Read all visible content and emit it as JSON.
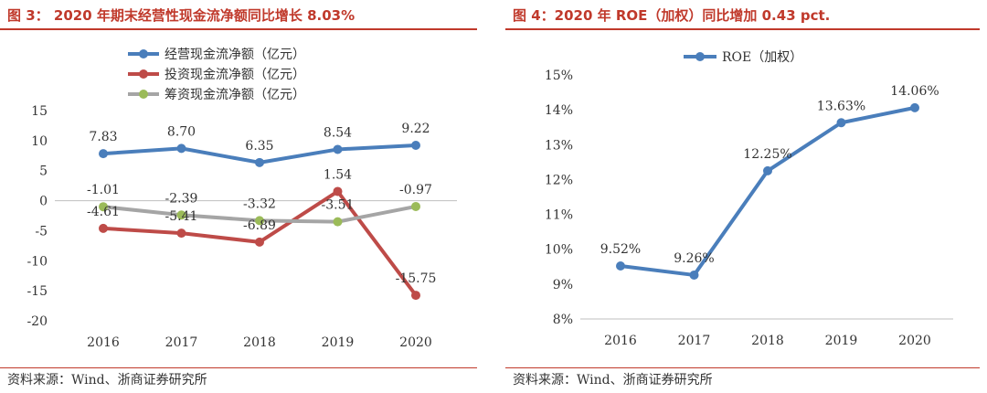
{
  "left_panel": {
    "title": "图 3： 2020 年期末经营性现金流净额同比增长 8.03%",
    "source": "资料来源：Wind、浙商证券研究所"
  },
  "right_panel": {
    "title": "图 4：2020 年 ROE（加权）同比增加 0.43 pct.",
    "source": "资料来源：Wind、浙商证券研究所"
  },
  "chart_data": [
    {
      "type": "line",
      "title": "",
      "xlabel": "",
      "ylabel": "",
      "categories": [
        "2016",
        "2017",
        "2018",
        "2019",
        "2020"
      ],
      "ylim": [
        -20,
        15
      ],
      "yticks": [
        15,
        10,
        5,
        0,
        -5,
        -10,
        -15,
        -20
      ],
      "ytick_labels": [
        "15",
        "10",
        "5",
        "0",
        "-5",
        "-10",
        "-15",
        "-20"
      ],
      "grid": false,
      "zero_line": true,
      "legend_position": "top-center",
      "series": [
        {
          "name": "经营现金流净额（亿元）",
          "color": "#4a7ebb",
          "values": [
            7.83,
            8.7,
            6.35,
            8.54,
            9.22
          ],
          "labels": [
            "7.83",
            "8.70",
            "6.35",
            "8.54",
            "9.22"
          ]
        },
        {
          "name": "投资现金流净额（亿元）",
          "color": "#be4b48",
          "values": [
            -4.61,
            -5.41,
            -6.89,
            1.54,
            -15.75
          ],
          "labels": [
            "-4.61",
            "-5.41",
            "-6.89",
            "1.54",
            "-15.75"
          ]
        },
        {
          "name": "筹资现金流净额（亿元）",
          "color": "#a5a5a5",
          "marker_color": "#9bbb59",
          "values": [
            -1.01,
            -2.39,
            -3.32,
            -3.51,
            -0.97
          ],
          "labels": [
            "-1.01",
            "-2.39",
            "-3.32",
            "-3.51",
            "-0.97"
          ]
        }
      ]
    },
    {
      "type": "line",
      "title": "",
      "xlabel": "",
      "ylabel": "",
      "categories": [
        "2016",
        "2017",
        "2018",
        "2019",
        "2020"
      ],
      "ylim": [
        8,
        15
      ],
      "yticks": [
        15,
        14,
        13,
        12,
        11,
        10,
        9,
        8
      ],
      "ytick_labels": [
        "15%",
        "14%",
        "13%",
        "12%",
        "11%",
        "10%",
        "9%",
        "8%"
      ],
      "grid": false,
      "legend_position": "top-center",
      "series": [
        {
          "name": "ROE（加权）",
          "color": "#4a7ebb",
          "values": [
            9.52,
            9.26,
            12.25,
            13.63,
            14.06
          ],
          "labels": [
            "9.52%",
            "9.26%",
            "12.25%",
            "13.63%",
            "14.06%"
          ]
        }
      ]
    }
  ]
}
